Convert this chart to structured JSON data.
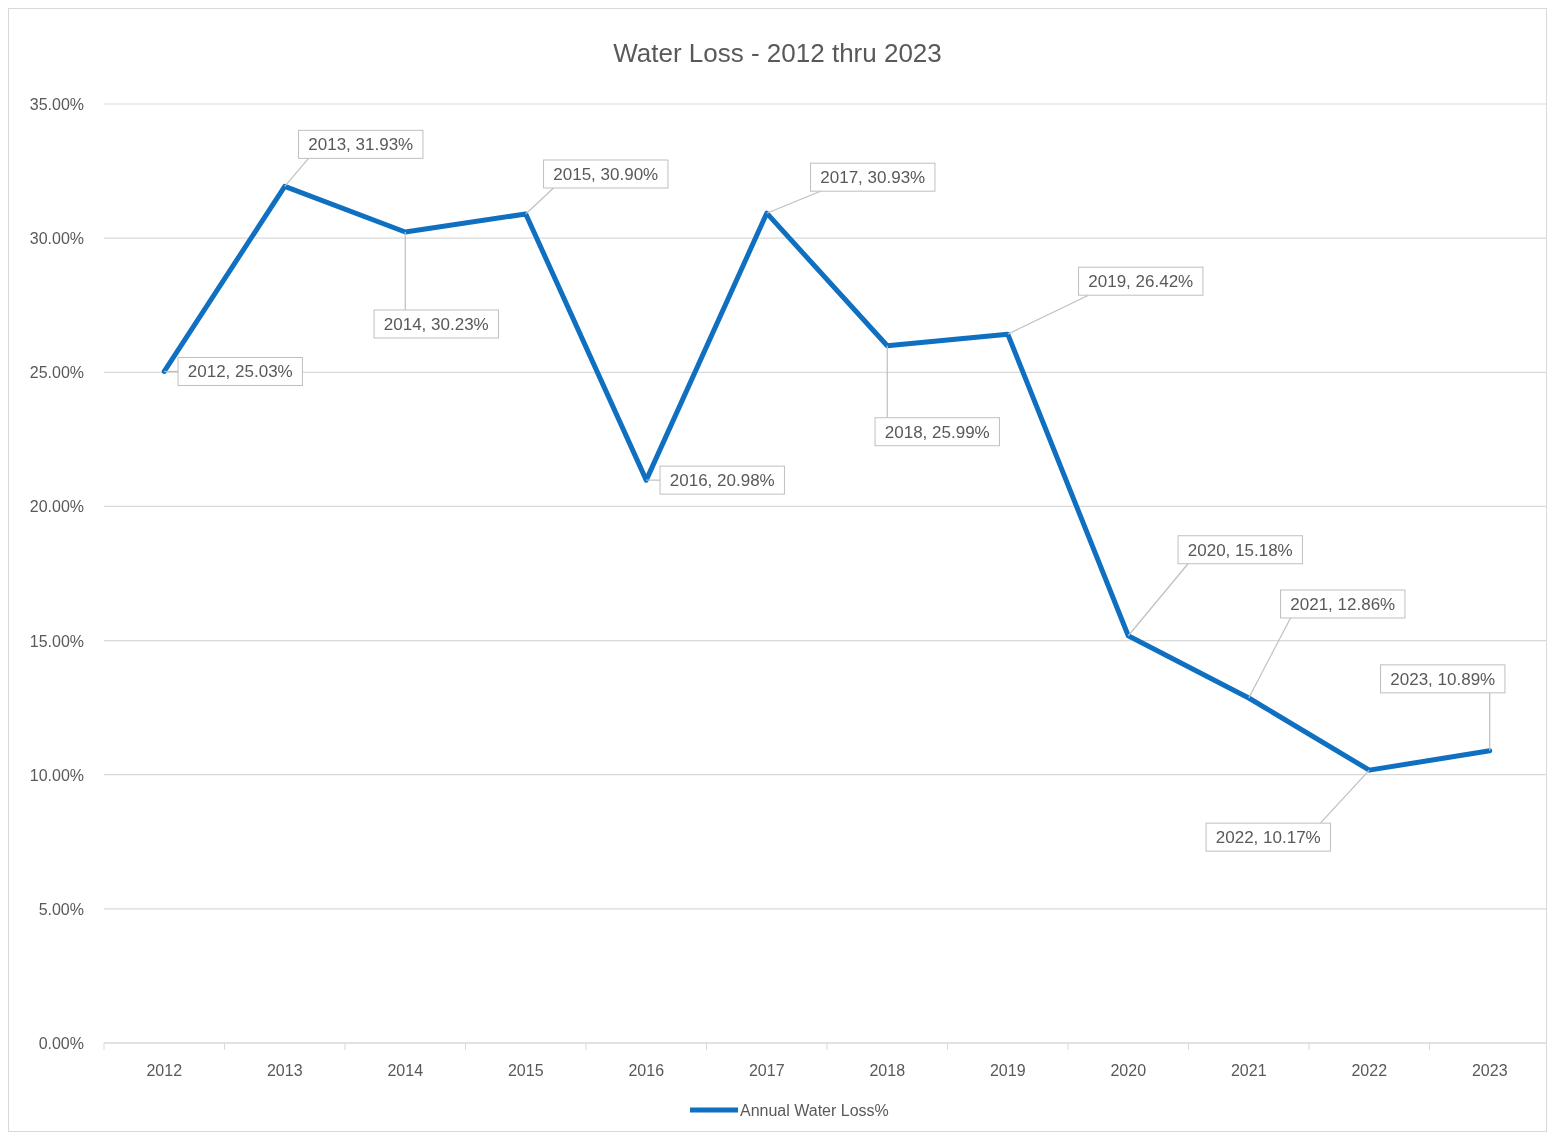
{
  "chart_data": {
    "type": "line",
    "title": "Water Loss - 2012 thru 2023",
    "categories": [
      "2012",
      "2013",
      "2014",
      "2015",
      "2016",
      "2017",
      "2018",
      "2019",
      "2020",
      "2021",
      "2022",
      "2023"
    ],
    "series": [
      {
        "name": "Annual Water Loss%",
        "color": "#0f6fc0",
        "values": [
          25.03,
          31.93,
          30.23,
          30.9,
          20.98,
          30.93,
          25.99,
          26.42,
          15.18,
          12.86,
          10.17,
          10.89
        ],
        "value_labels": [
          "2012, 25.03%",
          "2013, 31.93%",
          "2014, 30.23%",
          "2015, 30.90%",
          "2016, 20.98%",
          "2017, 30.93%",
          "2018, 25.99%",
          "2019, 26.42%",
          "2020, 15.18%",
          "2021, 12.86%",
          "2022, 10.17%",
          "2023, 10.89%"
        ]
      }
    ],
    "ylim": [
      0,
      35
    ],
    "yticks": [
      {
        "value": 0,
        "label": "0.00%"
      },
      {
        "value": 5,
        "label": "5.00%"
      },
      {
        "value": 10,
        "label": "10.00%"
      },
      {
        "value": 15,
        "label": "15.00%"
      },
      {
        "value": 20,
        "label": "20.00%"
      },
      {
        "value": 25,
        "label": "25.00%"
      },
      {
        "value": 30,
        "label": "30.00%"
      },
      {
        "value": 35,
        "label": "35.00%"
      }
    ],
    "grid": "y",
    "legend": "bottom",
    "marker": "none",
    "line_style": "solid"
  }
}
